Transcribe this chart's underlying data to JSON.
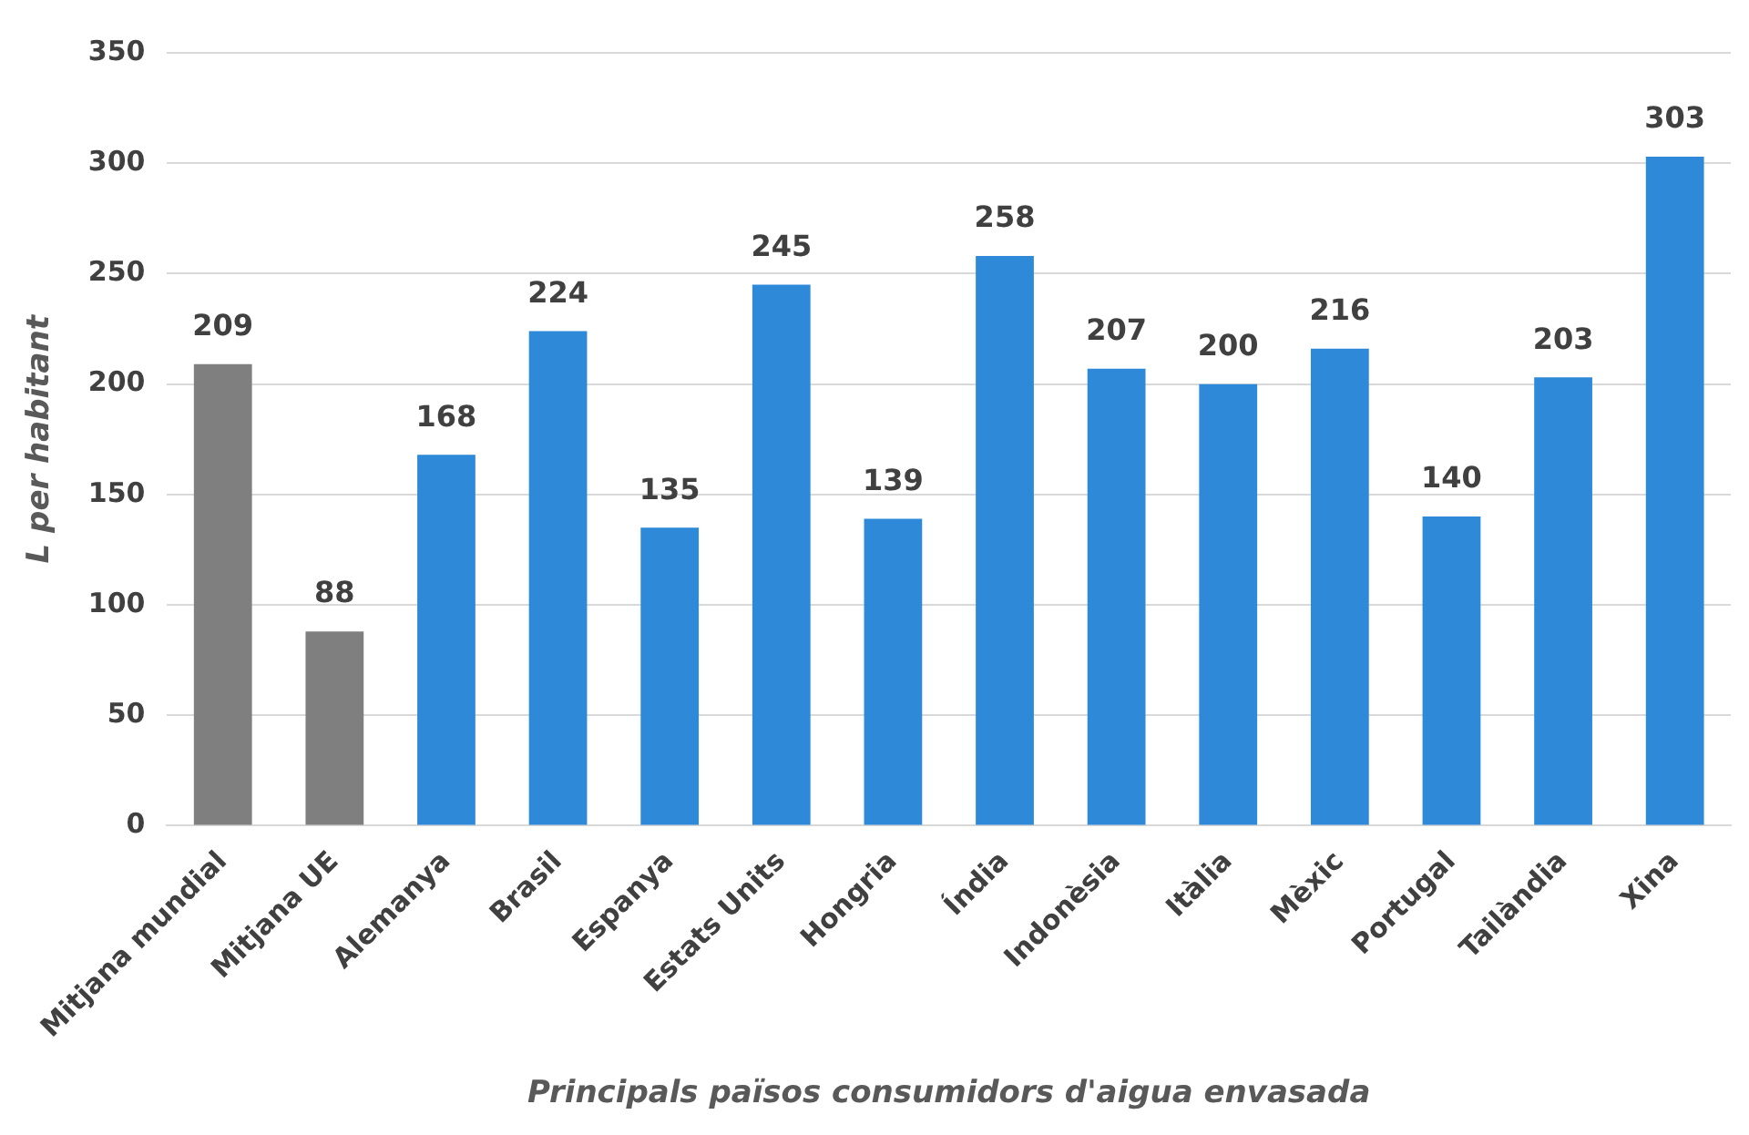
{
  "chart_data": {
    "type": "bar",
    "xlabel": "Principals països consumidors d'aigua envasada",
    "ylabel": "L per habitant",
    "categories": [
      "Mitjana mundial",
      "Mitjana UE",
      "Alemanya",
      "Brasil",
      "Espanya",
      "Estats Units",
      "Hongria",
      "Índia",
      "Indonèsia",
      "Itàlia",
      "Mèxic",
      "Portugal",
      "Tailàndia",
      "Xina"
    ],
    "values": [
      209,
      88,
      168,
      224,
      135,
      245,
      139,
      258,
      207,
      200,
      216,
      140,
      203,
      303
    ],
    "colors": [
      "#7f7f7f",
      "#7f7f7f",
      "#2e8ad8",
      "#2e8ad8",
      "#2e8ad8",
      "#2e8ad8",
      "#2e8ad8",
      "#2e8ad8",
      "#2e8ad8",
      "#2e8ad8",
      "#2e8ad8",
      "#2e8ad8",
      "#2e8ad8",
      "#2e8ad8"
    ],
    "ylim": [
      0,
      350
    ],
    "yticks": [
      0,
      50,
      100,
      150,
      200,
      250,
      300,
      350
    ],
    "grid": "y",
    "data_labels": true,
    "legend": false
  }
}
